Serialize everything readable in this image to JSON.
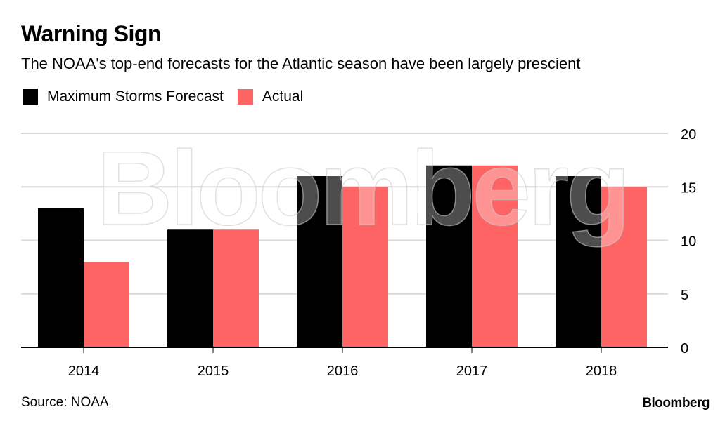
{
  "header": {
    "title": "Warning Sign",
    "subtitle": "The NOAA's top-end forecasts for the Atlantic season have been largely prescient"
  },
  "footer": {
    "source": "Source: NOAA",
    "brand": "Bloomberg"
  },
  "watermark": "Bloomberg",
  "colors": {
    "forecast": "#000000",
    "actual": "#ff6464",
    "grid": "#d9d9d9"
  },
  "chart_data": {
    "type": "bar",
    "title": "Warning Sign",
    "subtitle": "The NOAA's top-end forecasts for the Atlantic season have been largely prescient",
    "categories": [
      "2014",
      "2015",
      "2016",
      "2017",
      "2018"
    ],
    "series": [
      {
        "name": "Maximum Storms Forecast",
        "values": [
          13,
          11,
          16,
          17,
          16
        ],
        "color": "#000000"
      },
      {
        "name": "Actual",
        "values": [
          8,
          11,
          15,
          17,
          15
        ],
        "color": "#ff6464"
      }
    ],
    "xlabel": "",
    "ylabel": "",
    "ylim": [
      0,
      20
    ],
    "yticks": [
      0,
      5,
      10,
      15,
      20
    ],
    "y_axis_side": "right",
    "grid": true,
    "legend": "top-left"
  }
}
